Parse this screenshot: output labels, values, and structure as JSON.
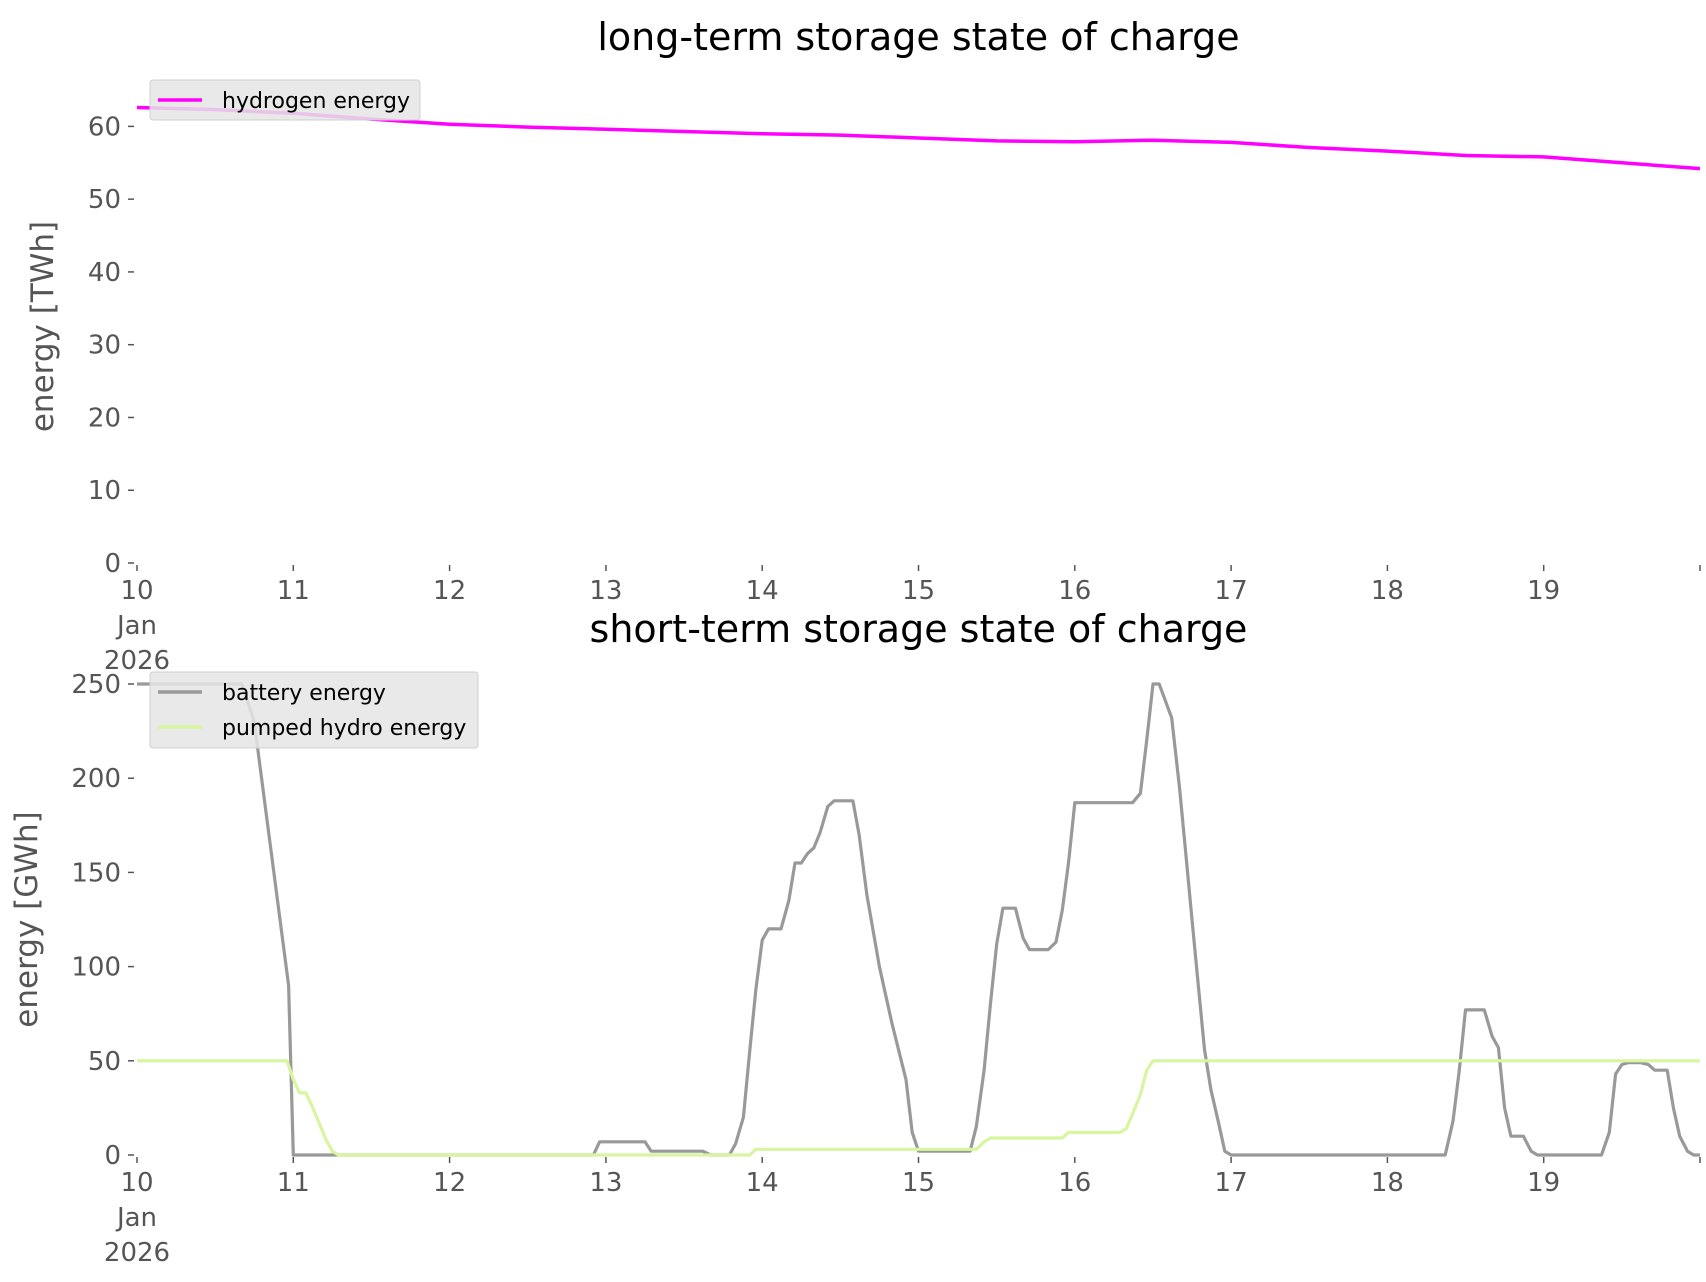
{
  "colors": {
    "hydrogen": "#ff00ff",
    "battery": "#999999",
    "pumped_hydro": "#d8f5a0",
    "legend_bg": "#e5e5e5",
    "tick_text": "#555555"
  },
  "chart_data": [
    {
      "type": "line",
      "title": "long-term storage state of charge",
      "ylabel": "energy [TWh]",
      "xlabel": "",
      "x_unit": "days in January 2026",
      "xlim": [
        10,
        20
      ],
      "ylim": [
        0,
        65
      ],
      "yticks": [
        0,
        10,
        20,
        30,
        40,
        50,
        60
      ],
      "xticks": [
        10,
        11,
        12,
        13,
        14,
        15,
        16,
        17,
        18,
        19
      ],
      "xtick_labels": [
        "10\nJan\n2026",
        "11",
        "12",
        "13",
        "14",
        "15",
        "16",
        "17",
        "18",
        "19"
      ],
      "grid": false,
      "legend_position": "top-left",
      "series": [
        {
          "name": "hydrogen energy",
          "color": "#ff00ff",
          "x": [
            10,
            10.5,
            11,
            11.5,
            12,
            12.5,
            13,
            13.5,
            14,
            14.5,
            15,
            15.5,
            16,
            16.5,
            17,
            17.5,
            18,
            18.5,
            19,
            19.5,
            20
          ],
          "y": [
            62.6,
            62.3,
            61.8,
            61.0,
            60.3,
            59.9,
            59.6,
            59.3,
            59.0,
            58.8,
            58.4,
            58.0,
            57.9,
            58.1,
            57.8,
            57.1,
            56.6,
            56.0,
            55.8,
            55.0,
            54.2
          ]
        }
      ]
    },
    {
      "type": "line",
      "title": "short-term storage state of charge",
      "ylabel": "energy [GWh]",
      "xlabel": "",
      "x_unit": "days in January 2026",
      "xlim": [
        10,
        20
      ],
      "ylim": [
        0,
        250
      ],
      "yticks": [
        0,
        50,
        100,
        150,
        200,
        250
      ],
      "xticks": [
        10,
        11,
        12,
        13,
        14,
        15,
        16,
        17,
        18,
        19
      ],
      "xtick_labels": [
        "10\nJan\n2026",
        "11",
        "12",
        "13",
        "14",
        "15",
        "16",
        "17",
        "18",
        "19"
      ],
      "grid": false,
      "legend_position": "top-left",
      "series": [
        {
          "name": "battery energy",
          "color": "#999999",
          "x": [
            10,
            10.67,
            10.75,
            10.97,
            11.0,
            12.92,
            12.96,
            13.25,
            13.29,
            13.62,
            13.67,
            13.79,
            13.83,
            13.88,
            13.92,
            13.96,
            14.0,
            14.04,
            14.08,
            14.12,
            14.17,
            14.21,
            14.25,
            14.29,
            14.33,
            14.37,
            14.42,
            14.46,
            14.5,
            14.58,
            14.62,
            14.67,
            14.75,
            14.83,
            14.92,
            14.96,
            15.0,
            15.33,
            15.37,
            15.42,
            15.46,
            15.5,
            15.54,
            15.62,
            15.67,
            15.71,
            15.75,
            15.83,
            15.88,
            15.92,
            15.96,
            16.0,
            16.37,
            16.42,
            16.46,
            16.5,
            16.54,
            16.62,
            16.67,
            16.71,
            16.75,
            16.79,
            16.83,
            16.87,
            16.92,
            16.96,
            17.0,
            18.37,
            18.42,
            18.46,
            18.5,
            18.54,
            18.58,
            18.62,
            18.67,
            18.71,
            18.75,
            18.79,
            18.83,
            18.87,
            18.92,
            18.96,
            19.0,
            19.37,
            19.42,
            19.46,
            19.5,
            19.54,
            19.62,
            19.67,
            19.71,
            19.75,
            19.79,
            19.83,
            19.87,
            19.92,
            19.96,
            20.0
          ],
          "y": [
            250,
            250,
            230,
            90,
            0,
            0,
            7,
            7,
            2,
            2,
            0,
            0,
            6,
            20,
            55,
            88,
            114,
            120,
            120,
            120,
            135,
            155,
            155,
            160,
            163,
            171,
            185,
            188,
            188,
            188,
            170,
            138,
            100,
            70,
            40,
            12,
            2,
            2,
            15,
            45,
            80,
            112,
            131,
            131,
            115,
            109,
            109,
            109,
            113,
            130,
            155,
            187,
            187,
            192,
            220,
            250,
            250,
            232,
            195,
            160,
            125,
            90,
            56,
            35,
            17,
            2,
            0,
            0,
            18,
            45,
            77,
            77,
            77,
            77,
            63,
            57,
            25,
            10,
            10,
            10,
            2,
            0,
            0,
            0,
            12,
            43,
            48,
            49,
            49,
            48,
            45,
            45,
            45,
            25,
            10,
            2,
            0,
            0
          ]
        },
        {
          "name": "pumped hydro energy",
          "color": "#d8f5a0",
          "x": [
            10,
            10.92,
            10.96,
            11.0,
            11.04,
            11.08,
            11.12,
            11.17,
            11.21,
            11.25,
            11.29,
            13.92,
            13.96,
            14.0,
            15.37,
            15.42,
            15.46,
            15.88,
            15.92,
            15.96,
            16.0,
            16.29,
            16.33,
            16.37,
            16.42,
            16.46,
            16.5,
            16.54,
            20.0
          ],
          "y": [
            50,
            50,
            50,
            40,
            33,
            33,
            26,
            16,
            8,
            2,
            0,
            0,
            3,
            3,
            3,
            7,
            9,
            9,
            9,
            12,
            12,
            12,
            14,
            22,
            32,
            45,
            50,
            50,
            50
          ]
        }
      ]
    }
  ]
}
